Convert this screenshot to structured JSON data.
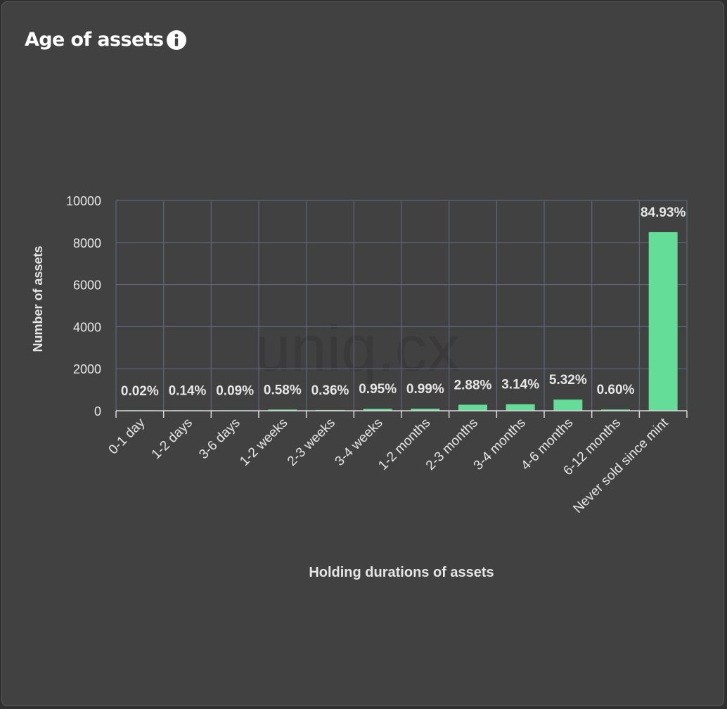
{
  "header": {
    "title": "Age of assets",
    "info_icon": "info-icon"
  },
  "watermark": "uniq.cx",
  "colors": {
    "background": "#414141",
    "bar": "#63dd97",
    "grid": "#5f6478",
    "text": "#e6e6e6"
  },
  "chart_data": {
    "type": "bar",
    "title": "",
    "xlabel": "Holding durations of assets",
    "ylabel": "Number of assets",
    "ylim": [
      0,
      10000
    ],
    "yticks": [
      0,
      2000,
      4000,
      6000,
      8000,
      10000
    ],
    "grid": true,
    "categories": [
      "0-1 day",
      "1-2 days",
      "3-6 days",
      "1-2 weeks",
      "2-3 weeks",
      "3-4 weeks",
      "1-2 months",
      "2-3 months",
      "3-4 months",
      "4-6 months",
      "6-12 months",
      "Never sold since mint"
    ],
    "values": [
      2,
      14,
      9,
      58,
      36,
      95,
      99,
      288,
      314,
      532,
      60,
      8493
    ],
    "labels": [
      "0.02%",
      "0.14%",
      "0.09%",
      "0.58%",
      "0.36%",
      "0.95%",
      "0.99%",
      "2.88%",
      "3.14%",
      "5.32%",
      "0.60%",
      "84.93%"
    ]
  }
}
